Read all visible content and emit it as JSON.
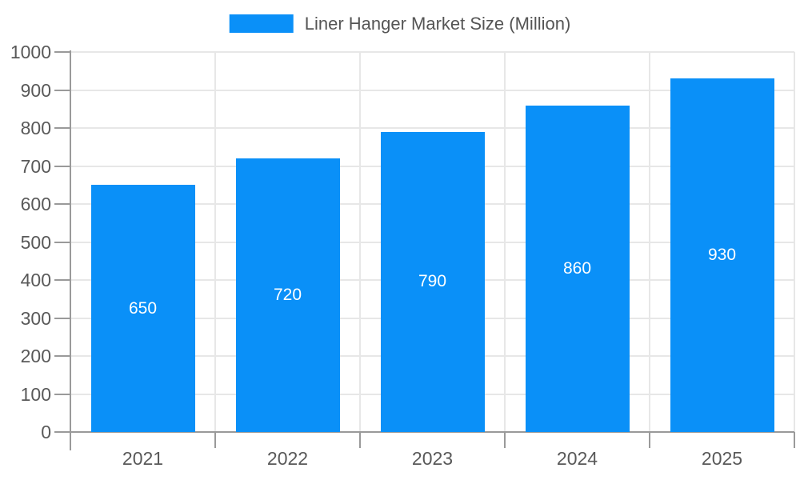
{
  "legend": {
    "label": "Liner Hanger Market Size (Million)"
  },
  "chart_data": {
    "type": "bar",
    "title": "Liner Hanger Market Size (Million)",
    "legend_entries": [
      "Liner Hanger Market Size (Million)"
    ],
    "legend_position": "top-center",
    "categories": [
      "2021",
      "2022",
      "2023",
      "2024",
      "2025"
    ],
    "series": [
      {
        "name": "Liner Hanger Market Size (Million)",
        "values": [
          650,
          720,
          790,
          860,
          930
        ]
      }
    ],
    "value_labels": {
      "show": true,
      "position": "inside-center",
      "texts": [
        "650",
        "720",
        "790",
        "860",
        "930"
      ]
    },
    "xlabel": "",
    "ylabel": "",
    "ylim": [
      0,
      1000
    ],
    "ytick_interval": 100,
    "ytick_labels": [
      "0",
      "100",
      "200",
      "300",
      "400",
      "500",
      "600",
      "700",
      "800",
      "900",
      "1000"
    ],
    "grid": true
  },
  "colors": {
    "bar": "#0A90F8",
    "legend_text": "#555555",
    "axis_text": "#595959",
    "value_label_text": "#FFFFFF",
    "grid_line": "#E7E7E7",
    "axis_line": "#9A9A9A",
    "background": "#FFFFFF"
  }
}
